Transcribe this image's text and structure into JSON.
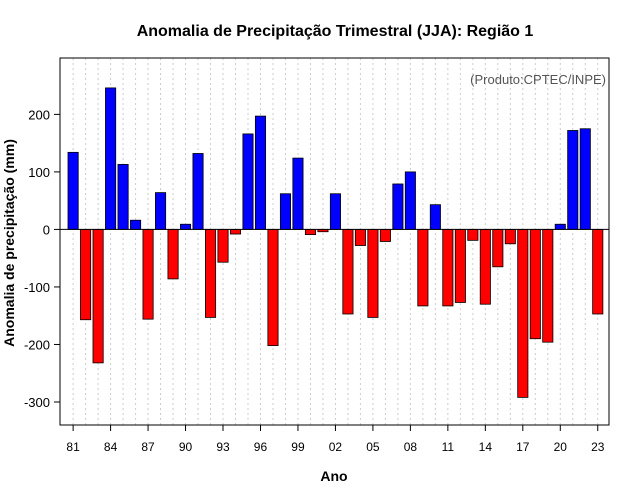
{
  "chart_data": {
    "type": "bar",
    "title": "Anomalia de Precipitação Trimestral (JJA): Região 1",
    "xlabel": "Ano",
    "ylabel": "Anomalia de precipitação (mm)",
    "annotation": "(Produto:CPTEC/INPE)",
    "ylim": [
      -340,
      298
    ],
    "yticks": [
      -300,
      -200,
      -100,
      0,
      100,
      200
    ],
    "xticks": [
      "81",
      "84",
      "87",
      "90",
      "93",
      "96",
      "99",
      "02",
      "05",
      "08",
      "11",
      "14",
      "17",
      "20",
      "23"
    ],
    "colors": {
      "positive": "#0000ff",
      "negative": "#ff0000",
      "grid": "#cccccc"
    },
    "categories": [
      "1981",
      "1982",
      "1983",
      "1984",
      "1985",
      "1986",
      "1987",
      "1988",
      "1989",
      "1990",
      "1991",
      "1992",
      "1993",
      "1994",
      "1995",
      "1996",
      "1997",
      "1998",
      "1999",
      "2000",
      "2001",
      "2002",
      "2003",
      "2004",
      "2005",
      "2006",
      "2007",
      "2008",
      "2009",
      "2010",
      "2011",
      "2012",
      "2013",
      "2014",
      "2015",
      "2016",
      "2017",
      "2018",
      "2019",
      "2020",
      "2021",
      "2022",
      "2023"
    ],
    "values": [
      134,
      -157,
      -232,
      246,
      113,
      16,
      -156,
      64,
      -86,
      9,
      132,
      -153,
      -57,
      -8,
      166,
      197,
      -202,
      62,
      124,
      -9,
      -4,
      62,
      -147,
      -28,
      -153,
      -21,
      79,
      100,
      -133,
      43,
      -133,
      -127,
      -19,
      -130,
      -65,
      -25,
      -292,
      -190,
      -196,
      9,
      172,
      175,
      -147
    ]
  }
}
